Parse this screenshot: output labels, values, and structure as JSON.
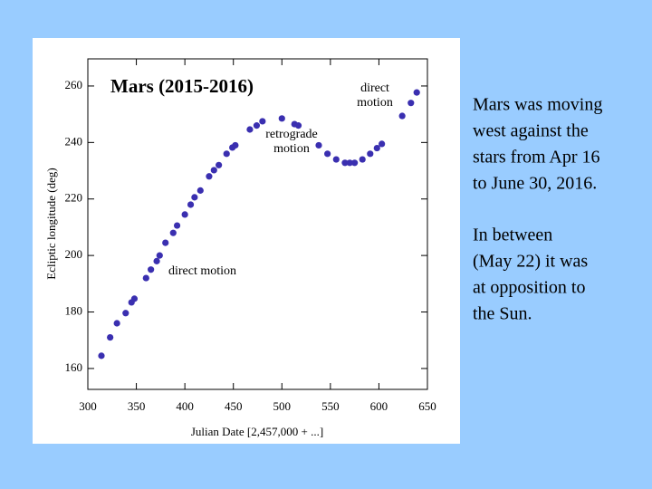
{
  "chart_data": {
    "type": "scatter",
    "title": "Mars (2015-2016)",
    "x_label": "Julian Date [2,457,000 + ...]",
    "y_label": "Ecliptic longitude (deg)",
    "annotations": [
      [
        "direct motion"
      ],
      [
        "retrograde",
        "motion"
      ],
      [
        "direct",
        "motion"
      ]
    ],
    "series": [
      {
        "color": "#3a2fb0",
        "x": [
          314,
          323,
          330,
          339,
          345,
          348,
          360,
          365,
          371,
          374,
          380,
          388,
          392,
          400,
          406,
          410,
          416,
          425,
          430,
          435,
          443,
          449,
          452,
          467,
          474,
          480,
          500,
          513,
          517,
          538,
          547,
          556,
          565,
          570,
          575,
          583,
          591,
          598,
          603,
          624,
          633,
          639
        ],
        "values": [
          164.5,
          171,
          176,
          179.6,
          183.4,
          184.7,
          192,
          195,
          198,
          200,
          204.5,
          208,
          210.6,
          214.5,
          218,
          220.6,
          223,
          228,
          230.2,
          232,
          236,
          238.2,
          239,
          244.6,
          246,
          247.5,
          248.5,
          246.5,
          246,
          239,
          236,
          234,
          232.8,
          232.8,
          232.8,
          234,
          236,
          238,
          239.5,
          249.4,
          254,
          257.7
        ]
      }
    ],
    "xlim": [
      300,
      650
    ],
    "xticks": [
      300,
      350,
      400,
      450,
      500,
      550,
      600,
      650
    ],
    "ylim": [
      152.6,
      269.6
    ],
    "yticks": [
      160,
      180,
      200,
      220,
      240,
      260
    ]
  },
  "slide_text": [
    [
      "Mars was moving",
      "west against the",
      "stars from Apr 16",
      "to June 30, 2016."
    ],
    [
      "In between",
      "(May 22) it was",
      "at opposition to",
      "the Sun."
    ]
  ]
}
